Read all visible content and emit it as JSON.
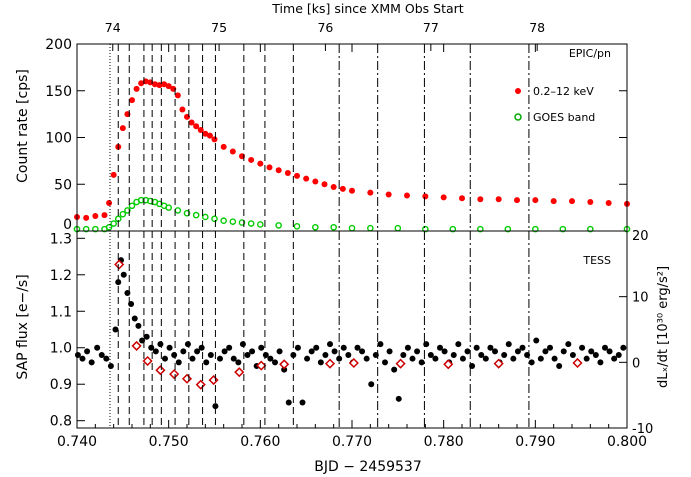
{
  "chart_data": [
    {
      "type": "scatter",
      "panel": "top",
      "title": "Time [ks] since XMM Obs Start",
      "ylabel": "Count rate [cps]",
      "panel_label": "EPIC/pn",
      "xlim": [
        0.74,
        0.8
      ],
      "ylim": [
        0,
        200
      ],
      "y_ticks": [
        "0",
        "50",
        "100",
        "150",
        "200"
      ],
      "top_axis": {
        "label": "Time [ks] since XMM Obs Start",
        "ticks": [
          {
            "label": "74",
            "bjd": 0.7439
          },
          {
            "label": "75",
            "bjd": 0.7555
          },
          {
            "label": "76",
            "bjd": 0.7671
          },
          {
            "label": "77",
            "bjd": 0.7786
          },
          {
            "label": "78",
            "bjd": 0.7902
          }
        ]
      },
      "legend_position": "top-right",
      "series": [
        {
          "name": "0.2–12 keV",
          "color": "#ff0000",
          "marker": "filled-circle",
          "x": [
            0.74,
            0.741,
            0.742,
            0.743,
            0.7435,
            0.744,
            0.7445,
            0.745,
            0.7455,
            0.746,
            0.7465,
            0.747,
            0.7475,
            0.748,
            0.7485,
            0.749,
            0.7495,
            0.75,
            0.7505,
            0.751,
            0.7515,
            0.752,
            0.7525,
            0.753,
            0.7535,
            0.754,
            0.7545,
            0.755,
            0.756,
            0.757,
            0.758,
            0.759,
            0.76,
            0.761,
            0.762,
            0.763,
            0.764,
            0.765,
            0.766,
            0.767,
            0.768,
            0.769,
            0.77,
            0.772,
            0.774,
            0.776,
            0.778,
            0.78,
            0.782,
            0.784,
            0.786,
            0.788,
            0.79,
            0.792,
            0.794,
            0.796,
            0.798,
            0.8
          ],
          "y": [
            15,
            14,
            16,
            17,
            30,
            60,
            90,
            110,
            125,
            140,
            152,
            158,
            160,
            159,
            157,
            156,
            157,
            155,
            152,
            145,
            130,
            122,
            116,
            112,
            108,
            104,
            102,
            98,
            90,
            85,
            80,
            76,
            72,
            68,
            65,
            62,
            59,
            56,
            53,
            50,
            47,
            45,
            43,
            41,
            39,
            38,
            37,
            36,
            35,
            34,
            34,
            33,
            33,
            32,
            32,
            31,
            30,
            29
          ]
        },
        {
          "name": "GOES band",
          "color": "#00cc00",
          "marker": "open-circle",
          "x": [
            0.74,
            0.741,
            0.742,
            0.743,
            0.7435,
            0.744,
            0.7445,
            0.745,
            0.7455,
            0.746,
            0.7465,
            0.747,
            0.7475,
            0.748,
            0.7485,
            0.749,
            0.7495,
            0.75,
            0.751,
            0.752,
            0.753,
            0.754,
            0.755,
            0.756,
            0.757,
            0.758,
            0.759,
            0.76,
            0.762,
            0.764,
            0.766,
            0.768,
            0.77,
            0.772,
            0.775,
            0.778,
            0.781,
            0.784,
            0.787,
            0.79,
            0.793,
            0.796,
            0.8
          ],
          "y": [
            2,
            2,
            2,
            2,
            4,
            8,
            13,
            18,
            22,
            27,
            31,
            33,
            33,
            32,
            31,
            29,
            27,
            25,
            22,
            19,
            17,
            15,
            13,
            11,
            10,
            9,
            8,
            7,
            6,
            5,
            4,
            4,
            3,
            3,
            3,
            2,
            2,
            2,
            2,
            2,
            2,
            2,
            2
          ]
        }
      ]
    },
    {
      "type": "scatter",
      "panel": "bottom",
      "xlabel": "BJD − 2459537",
      "ylabel": "SAP flux [e−/s]",
      "ylabel_right": "dLₓ/dt [10³⁰ erg/s²]",
      "panel_label": "TESS",
      "xlim": [
        0.74,
        0.8
      ],
      "ylim": [
        0.78,
        1.32
      ],
      "ylim_right": [
        -10,
        20
      ],
      "x_ticks": [
        "0.740",
        "0.750",
        "0.760",
        "0.770",
        "0.780",
        "0.790",
        "0.800"
      ],
      "y_ticks": [
        "0.8",
        "0.9",
        "1.0",
        "1.1",
        "1.2",
        "1.3"
      ],
      "y_right_ticks": [
        "-10",
        "0",
        "10",
        "20"
      ],
      "series": [
        {
          "name": "",
          "color": "#000000",
          "marker": "filled-circle",
          "x": [
            0.7401,
            0.7406,
            0.7411,
            0.7416,
            0.7422,
            0.7427,
            0.7432,
            0.7437,
            0.7442,
            0.7445,
            0.7448,
            0.7451,
            0.7455,
            0.7459,
            0.7463,
            0.7467,
            0.7471,
            0.7476,
            0.7481,
            0.7486,
            0.7491,
            0.7496,
            0.7501,
            0.7506,
            0.7511,
            0.7516,
            0.7521,
            0.7526,
            0.7531,
            0.7536,
            0.7541,
            0.7546,
            0.7551,
            0.7556,
            0.7561,
            0.7566,
            0.7571,
            0.7576,
            0.7581,
            0.7586,
            0.7591,
            0.7596,
            0.7601,
            0.7606,
            0.7611,
            0.7616,
            0.7621,
            0.7626,
            0.7631,
            0.7636,
            0.7641,
            0.7646,
            0.7651,
            0.7656,
            0.7661,
            0.7666,
            0.7671,
            0.7676,
            0.7681,
            0.7686,
            0.7691,
            0.7696,
            0.7701,
            0.7706,
            0.7711,
            0.7716,
            0.7721,
            0.7726,
            0.7731,
            0.7736,
            0.7741,
            0.7746,
            0.7751,
            0.7756,
            0.7761,
            0.7766,
            0.7771,
            0.7776,
            0.7781,
            0.7786,
            0.7791,
            0.7796,
            0.7801,
            0.7806,
            0.7811,
            0.7816,
            0.7821,
            0.7826,
            0.7831,
            0.7836,
            0.7841,
            0.7846,
            0.7851,
            0.7856,
            0.7861,
            0.7866,
            0.7871,
            0.7876,
            0.7881,
            0.7886,
            0.7891,
            0.7896,
            0.7901,
            0.7906,
            0.7911,
            0.7916,
            0.7921,
            0.7926,
            0.7931,
            0.7936,
            0.7941,
            0.7946,
            0.7951,
            0.7956,
            0.7961,
            0.7966,
            0.7971,
            0.7976,
            0.7981,
            0.7986,
            0.7991,
            0.7996
          ],
          "y": [
            0.98,
            0.97,
            0.99,
            0.96,
            1.0,
            0.98,
            0.97,
            0.95,
            1.05,
            1.18,
            1.24,
            1.2,
            1.15,
            1.12,
            1.08,
            1.06,
            1.02,
            1.03,
            1.0,
            0.99,
            1.01,
            0.97,
            1.0,
            0.98,
            0.96,
            0.99,
            1.01,
            0.97,
            0.99,
            1.0,
            0.96,
            0.98,
            0.84,
            0.97,
            0.99,
            1.0,
            0.97,
            0.96,
            1.01,
            0.98,
            0.99,
            0.95,
            1.0,
            0.98,
            0.97,
            0.96,
            0.99,
            0.94,
            0.85,
            0.98,
            1.0,
            0.85,
            0.97,
            0.99,
            1.0,
            0.96,
            0.98,
            1.01,
            0.99,
            0.97,
            1.0,
            0.98,
            0.96,
            1.0,
            0.99,
            0.97,
            0.9,
            0.98,
            1.01,
            0.96,
            0.99,
            0.94,
            0.86,
            0.98,
            1.0,
            0.97,
            0.99,
            0.96,
            1.01,
            0.98,
            0.97,
            1.0,
            0.99,
            0.96,
            0.98,
            1.01,
            0.97,
            0.99,
            0.95,
            1.0,
            0.98,
            0.97,
            1.0,
            0.99,
            0.96,
            0.98,
            1.01,
            0.97,
            0.99,
            1.0,
            0.98,
            0.96,
            1.02,
            0.97,
            0.99,
            1.0,
            0.97,
            0.95,
            0.99,
            1.01,
            0.98,
            0.96,
            1.0,
            0.97,
            0.99,
            0.98,
            0.96,
            1.0,
            0.99,
            0.97,
            0.98,
            1.0
          ]
        },
        {
          "name": "",
          "color": "#cc0000",
          "marker": "open-diamond",
          "axis": "right",
          "x": [
            0.7446,
            0.7465,
            0.7477,
            0.7491,
            0.7506,
            0.752,
            0.7535,
            0.7549,
            0.7577,
            0.7601,
            0.7626,
            0.7676,
            0.7702,
            0.7753,
            0.7805,
            0.786,
            0.7946
          ],
          "y": [
            14.9,
            2.5,
            0.2,
            -1.2,
            -1.8,
            -2.5,
            -3.4,
            -2.7,
            -1.5,
            -0.5,
            -0.3,
            -0.2,
            -0.1,
            -0.2,
            -0.3,
            -0.2,
            -0.1
          ]
        }
      ]
    }
  ],
  "vertical_markers": {
    "dotted": [
      0.7436
    ],
    "dashed": [
      0.7445,
      0.7457,
      0.7473,
      0.7482,
      0.7492,
      0.7507,
      0.7522,
      0.7537,
      0.7551,
      0.7582,
      0.7605,
      0.7636
    ],
    "dash_dot": [
      0.7686,
      0.7728,
      0.7779,
      0.7829,
      0.7893
    ]
  }
}
